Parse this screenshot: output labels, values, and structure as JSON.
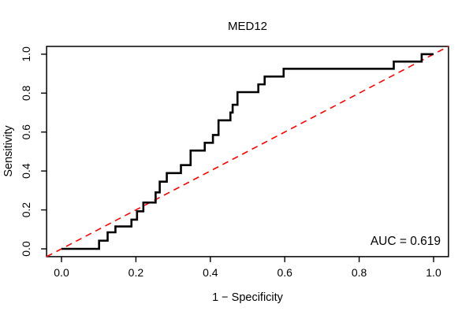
{
  "chart_data": {
    "type": "line",
    "subtype": "roc_step_curve",
    "title": "MED12",
    "xlabel": "1 − Specificity",
    "ylabel": "Sensitivity",
    "xlim": [
      -0.04,
      1.04
    ],
    "ylim": [
      -0.04,
      1.04
    ],
    "grid": false,
    "legend": false,
    "background_color": "#ffffff",
    "x_ticks": {
      "values": [
        0.0,
        0.2,
        0.4,
        0.6,
        0.8,
        1.0
      ],
      "labels": [
        "0.0",
        "0.2",
        "0.4",
        "0.6",
        "0.8",
        "1.0"
      ]
    },
    "y_ticks": {
      "values": [
        0.0,
        0.2,
        0.4,
        0.6,
        0.8,
        1.0
      ],
      "labels": [
        "0.0",
        "0.2",
        "0.4",
        "0.6",
        "0.8",
        "1.0"
      ]
    },
    "annotation": {
      "text": "AUC = 0.619",
      "value": 0.619,
      "position": "bottom-right"
    },
    "series": [
      {
        "name": "ROC step curve",
        "color": "#000000",
        "line_width": 2.6,
        "style": "step",
        "points": [
          [
            0.0,
            0.0
          ],
          [
            0.101,
            0.042
          ],
          [
            0.124,
            0.085
          ],
          [
            0.145,
            0.115
          ],
          [
            0.188,
            0.15
          ],
          [
            0.203,
            0.193
          ],
          [
            0.22,
            0.238
          ],
          [
            0.253,
            0.29
          ],
          [
            0.264,
            0.345
          ],
          [
            0.283,
            0.389
          ],
          [
            0.321,
            0.43
          ],
          [
            0.347,
            0.505
          ],
          [
            0.385,
            0.545
          ],
          [
            0.407,
            0.585
          ],
          [
            0.422,
            0.66
          ],
          [
            0.454,
            0.7
          ],
          [
            0.46,
            0.74
          ],
          [
            0.473,
            0.805
          ],
          [
            0.529,
            0.845
          ],
          [
            0.546,
            0.885
          ],
          [
            0.597,
            0.925
          ],
          [
            0.893,
            0.962
          ],
          [
            0.968,
            1.0
          ],
          [
            1.0,
            1.0
          ]
        ]
      },
      {
        "name": "chance diagonal",
        "color": "#FF0000",
        "line_width": 1.6,
        "style": "dashed",
        "from": [
          0.0,
          0.0
        ],
        "to": [
          1.0,
          1.0
        ]
      }
    ]
  }
}
